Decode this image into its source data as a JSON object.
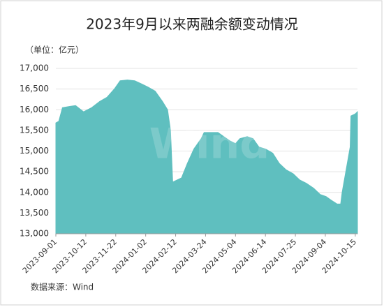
{
  "chart_data": {
    "type": "area",
    "title": "2023年9月以来两融余额变动情况",
    "unit_label": "（单位：亿元）",
    "source": "数据来源：Wind",
    "watermark": "Wind",
    "color": "#5fbfbf",
    "grid": true,
    "x": [
      "2023-09-01",
      "2023-09-05",
      "2023-09-10",
      "2023-09-20",
      "2023-09-28",
      "2023-10-09",
      "2023-10-20",
      "2023-10-31",
      "2023-11-10",
      "2023-11-20",
      "2023-11-28",
      "2023-12-08",
      "2023-12-18",
      "2023-12-28",
      "2024-01-05",
      "2024-01-15",
      "2024-01-25",
      "2024-02-01",
      "2024-02-05",
      "2024-02-08",
      "2024-02-20",
      "2024-02-28",
      "2024-03-08",
      "2024-03-18",
      "2024-03-22",
      "2024-03-31",
      "2024-04-10",
      "2024-04-18",
      "2024-04-26",
      "2024-05-04",
      "2024-05-10",
      "2024-05-20",
      "2024-05-28",
      "2024-06-05",
      "2024-06-14",
      "2024-06-24",
      "2024-07-03",
      "2024-07-12",
      "2024-07-22",
      "2024-07-31",
      "2024-08-09",
      "2024-08-19",
      "2024-08-28",
      "2024-09-05",
      "2024-09-13",
      "2024-09-20",
      "2024-09-25",
      "2024-09-27",
      "2024-10-08",
      "2024-10-09",
      "2024-10-15",
      "2024-10-18"
    ],
    "values": [
      15680,
      15720,
      16050,
      16080,
      16100,
      15950,
      16050,
      16200,
      16300,
      16500,
      16700,
      16720,
      16700,
      16620,
      16550,
      16450,
      16200,
      16000,
      15500,
      14250,
      14350,
      14700,
      15050,
      15300,
      15450,
      15450,
      15450,
      15350,
      15250,
      15180,
      15300,
      15350,
      15300,
      15100,
      15050,
      14950,
      14700,
      14550,
      14450,
      14300,
      14220,
      14100,
      13950,
      13900,
      13800,
      13720,
      13720,
      14000,
      15100,
      15850,
      15900,
      15950
    ],
    "xlim": [
      "2023-09-01",
      "2024-10-18"
    ],
    "xticks": [
      "2023-09-01",
      "2023-10-12",
      "2023-11-22",
      "2024-01-02",
      "2024-02-12",
      "2024-03-24",
      "2024-05-04",
      "2024-06-14",
      "2024-07-25",
      "2024-09-04",
      "2024-10-15"
    ],
    "ylim": [
      13000,
      17000
    ],
    "yticks": [
      {
        "value": 13000,
        "label": "13,000"
      },
      {
        "value": 13500,
        "label": "13,500"
      },
      {
        "value": 14000,
        "label": "14,000"
      },
      {
        "value": 14500,
        "label": "14,500"
      },
      {
        "value": 15000,
        "label": "15,000"
      },
      {
        "value": 15500,
        "label": "15,500"
      },
      {
        "value": 16000,
        "label": "16,000"
      },
      {
        "value": 16500,
        "label": "16,500"
      },
      {
        "value": 17000,
        "label": "17,000"
      }
    ]
  }
}
